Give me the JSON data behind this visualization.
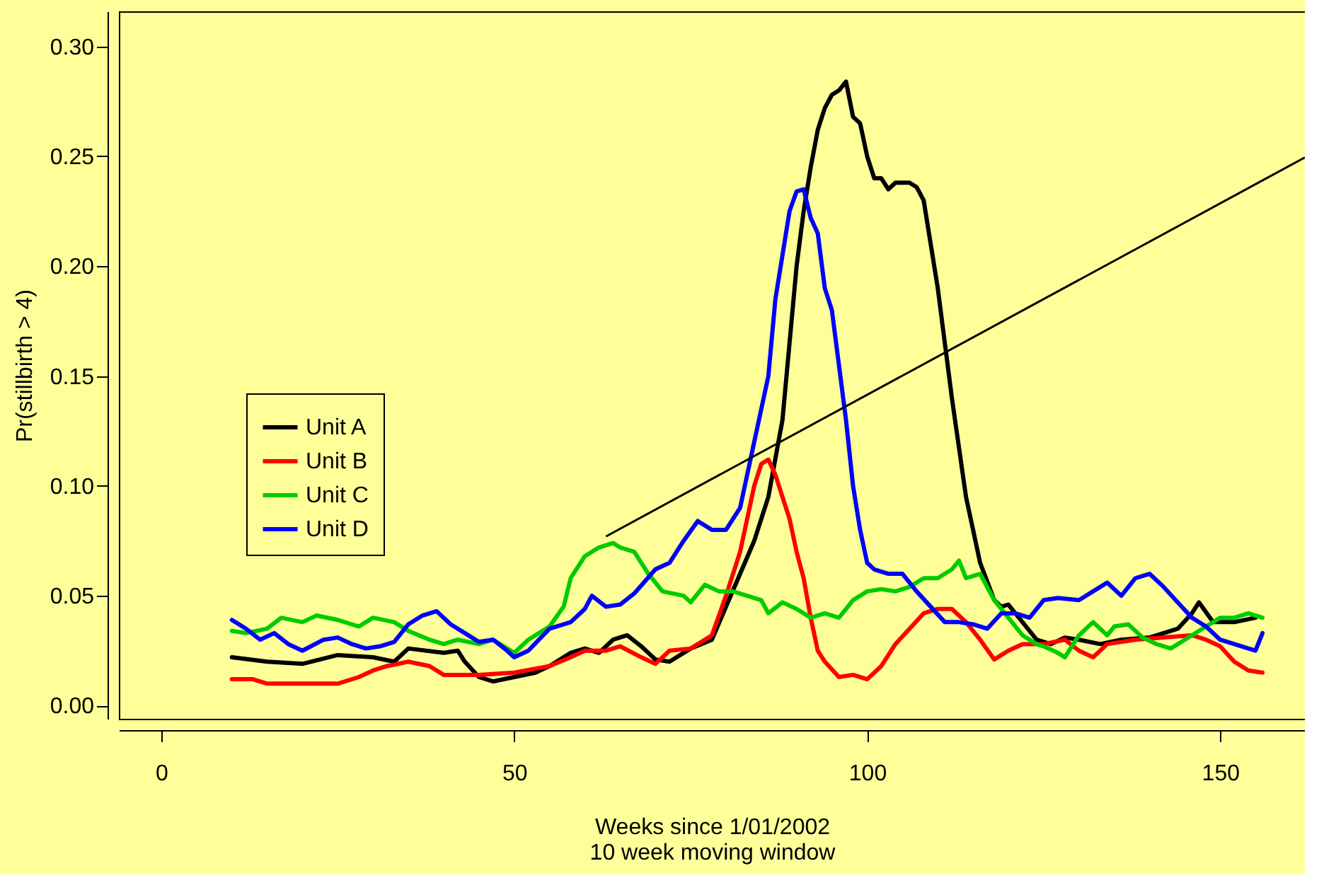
{
  "chart_data": {
    "type": "line",
    "xlabel": "Weeks since 1/01/2002\n10 week moving window",
    "ylabel": "Pr(stillbirth > 4)",
    "xlim": [
      -6,
      162
    ],
    "ylim": [
      -0.006,
      0.316
    ],
    "xticks": [
      0,
      50,
      100,
      150
    ],
    "yticks": [
      {
        "value": 0,
        "label": "0.00"
      },
      {
        "value": 0.05,
        "label": "0.05"
      },
      {
        "value": 0.1,
        "label": "0.10"
      },
      {
        "value": 0.15,
        "label": "0.15"
      },
      {
        "value": 0.2,
        "label": "0.20"
      },
      {
        "value": 0.25,
        "label": "0.25"
      },
      {
        "value": 0.3,
        "label": "0.30"
      }
    ],
    "grid": false,
    "legend": "left",
    "marker": "none",
    "line_style": "solid",
    "series": [
      {
        "name": "Unit A",
        "color": "#000000",
        "x": [
          10,
          15,
          20,
          25,
          30,
          33,
          35,
          40,
          42,
          43,
          45,
          47,
          50,
          53,
          55,
          58,
          60,
          62,
          64,
          66,
          68,
          70,
          72,
          75,
          78,
          80,
          82,
          84,
          86,
          88,
          89,
          90,
          91,
          92,
          93,
          94,
          95,
          96,
          97,
          98,
          99,
          100,
          101,
          102,
          103,
          104,
          106,
          107,
          108,
          110,
          112,
          114,
          116,
          118,
          119,
          120,
          122,
          124,
          126,
          128,
          130,
          133,
          136,
          140,
          144,
          146,
          147,
          149,
          152,
          155
        ],
        "values": [
          0.022,
          0.02,
          0.019,
          0.023,
          0.022,
          0.02,
          0.026,
          0.024,
          0.025,
          0.02,
          0.013,
          0.011,
          0.013,
          0.015,
          0.018,
          0.024,
          0.026,
          0.024,
          0.03,
          0.032,
          0.027,
          0.021,
          0.02,
          0.026,
          0.03,
          0.045,
          0.06,
          0.075,
          0.095,
          0.13,
          0.165,
          0.2,
          0.225,
          0.245,
          0.262,
          0.272,
          0.278,
          0.28,
          0.284,
          0.268,
          0.265,
          0.25,
          0.24,
          0.24,
          0.235,
          0.238,
          0.238,
          0.236,
          0.23,
          0.19,
          0.14,
          0.095,
          0.065,
          0.048,
          0.045,
          0.046,
          0.038,
          0.03,
          0.028,
          0.031,
          0.03,
          0.028,
          0.03,
          0.031,
          0.035,
          0.042,
          0.047,
          0.038,
          0.038,
          0.04
        ]
      },
      {
        "name": "Unit B",
        "color": "#ff0000",
        "x": [
          10,
          13,
          15,
          20,
          25,
          28,
          30,
          32,
          35,
          38,
          40,
          43,
          45,
          50,
          55,
          58,
          60,
          63,
          65,
          68,
          70,
          72,
          75,
          77,
          78,
          80,
          82,
          83,
          84,
          85,
          86,
          87,
          88,
          89,
          90,
          91,
          92,
          93,
          94,
          96,
          98,
          100,
          102,
          104,
          106,
          108,
          110,
          112,
          114,
          116,
          118,
          120,
          122,
          125,
          128,
          130,
          132,
          134,
          138,
          142,
          146,
          148,
          150,
          152,
          154,
          156
        ],
        "values": [
          0.012,
          0.012,
          0.01,
          0.01,
          0.01,
          0.013,
          0.016,
          0.018,
          0.02,
          0.018,
          0.014,
          0.014,
          0.014,
          0.015,
          0.018,
          0.022,
          0.025,
          0.025,
          0.027,
          0.022,
          0.019,
          0.025,
          0.026,
          0.03,
          0.032,
          0.05,
          0.07,
          0.085,
          0.1,
          0.11,
          0.112,
          0.105,
          0.095,
          0.085,
          0.07,
          0.058,
          0.04,
          0.025,
          0.02,
          0.013,
          0.014,
          0.012,
          0.018,
          0.028,
          0.035,
          0.042,
          0.044,
          0.044,
          0.038,
          0.03,
          0.021,
          0.025,
          0.028,
          0.028,
          0.03,
          0.025,
          0.022,
          0.028,
          0.03,
          0.031,
          0.032,
          0.03,
          0.027,
          0.02,
          0.016,
          0.015
        ]
      },
      {
        "name": "Unit C",
        "color": "#00cc00",
        "x": [
          10,
          12,
          15,
          17,
          20,
          22,
          25,
          28,
          30,
          33,
          35,
          38,
          40,
          42,
          45,
          47,
          49,
          50,
          52,
          54,
          55,
          57,
          58,
          60,
          62,
          64,
          65,
          67,
          69,
          71,
          74,
          75,
          77,
          79,
          81,
          83,
          85,
          86,
          88,
          90,
          92,
          94,
          96,
          98,
          100,
          102,
          104,
          106,
          108,
          110,
          112,
          113,
          114,
          116,
          118,
          120,
          122,
          124,
          125,
          127,
          128,
          130,
          132,
          134,
          135,
          137,
          139,
          141,
          143,
          145,
          147,
          148,
          150,
          152,
          154,
          156
        ],
        "values": [
          0.034,
          0.033,
          0.035,
          0.04,
          0.038,
          0.041,
          0.039,
          0.036,
          0.04,
          0.038,
          0.034,
          0.03,
          0.028,
          0.03,
          0.028,
          0.03,
          0.026,
          0.024,
          0.03,
          0.034,
          0.036,
          0.045,
          0.058,
          0.068,
          0.072,
          0.074,
          0.072,
          0.07,
          0.06,
          0.052,
          0.05,
          0.047,
          0.055,
          0.052,
          0.052,
          0.05,
          0.048,
          0.042,
          0.047,
          0.044,
          0.04,
          0.042,
          0.04,
          0.048,
          0.052,
          0.053,
          0.052,
          0.054,
          0.058,
          0.058,
          0.062,
          0.066,
          0.058,
          0.06,
          0.048,
          0.04,
          0.032,
          0.028,
          0.027,
          0.024,
          0.022,
          0.032,
          0.038,
          0.032,
          0.036,
          0.037,
          0.031,
          0.028,
          0.026,
          0.03,
          0.034,
          0.036,
          0.04,
          0.04,
          0.042,
          0.04
        ]
      },
      {
        "name": "Unit D",
        "color": "#0000ff",
        "x": [
          10,
          12,
          14,
          16,
          18,
          20,
          23,
          25,
          27,
          29,
          31,
          33,
          35,
          37,
          39,
          41,
          43,
          45,
          47,
          49,
          50,
          52,
          55,
          58,
          60,
          61,
          63,
          65,
          67,
          70,
          72,
          74,
          76,
          78,
          80,
          82,
          84,
          86,
          87,
          88,
          89,
          90,
          91,
          92,
          93,
          94,
          95,
          96,
          97,
          98,
          99,
          100,
          101,
          103,
          105,
          107,
          109,
          111,
          113,
          115,
          117,
          119,
          121,
          123,
          125,
          127,
          130,
          132,
          134,
          136,
          138,
          140,
          142,
          144,
          146,
          148,
          150,
          152,
          154,
          155,
          156
        ],
        "values": [
          0.039,
          0.035,
          0.03,
          0.033,
          0.028,
          0.025,
          0.03,
          0.031,
          0.028,
          0.026,
          0.027,
          0.029,
          0.037,
          0.041,
          0.043,
          0.037,
          0.033,
          0.029,
          0.03,
          0.025,
          0.022,
          0.025,
          0.035,
          0.038,
          0.044,
          0.05,
          0.045,
          0.046,
          0.051,
          0.062,
          0.065,
          0.075,
          0.084,
          0.08,
          0.08,
          0.09,
          0.12,
          0.15,
          0.185,
          0.205,
          0.225,
          0.234,
          0.235,
          0.222,
          0.215,
          0.19,
          0.18,
          0.155,
          0.13,
          0.1,
          0.08,
          0.065,
          0.062,
          0.06,
          0.06,
          0.052,
          0.045,
          0.038,
          0.038,
          0.037,
          0.035,
          0.042,
          0.042,
          0.04,
          0.048,
          0.049,
          0.048,
          0.052,
          0.056,
          0.05,
          0.058,
          0.06,
          0.054,
          0.047,
          0.04,
          0.036,
          0.03,
          0.028,
          0.026,
          0.025,
          0.033
        ]
      },
      {
        "type": "line",
        "color": "#000000",
        "x": [
          63,
          162
        ],
        "values": [
          0.077,
          0.2495
        ]
      }
    ]
  }
}
